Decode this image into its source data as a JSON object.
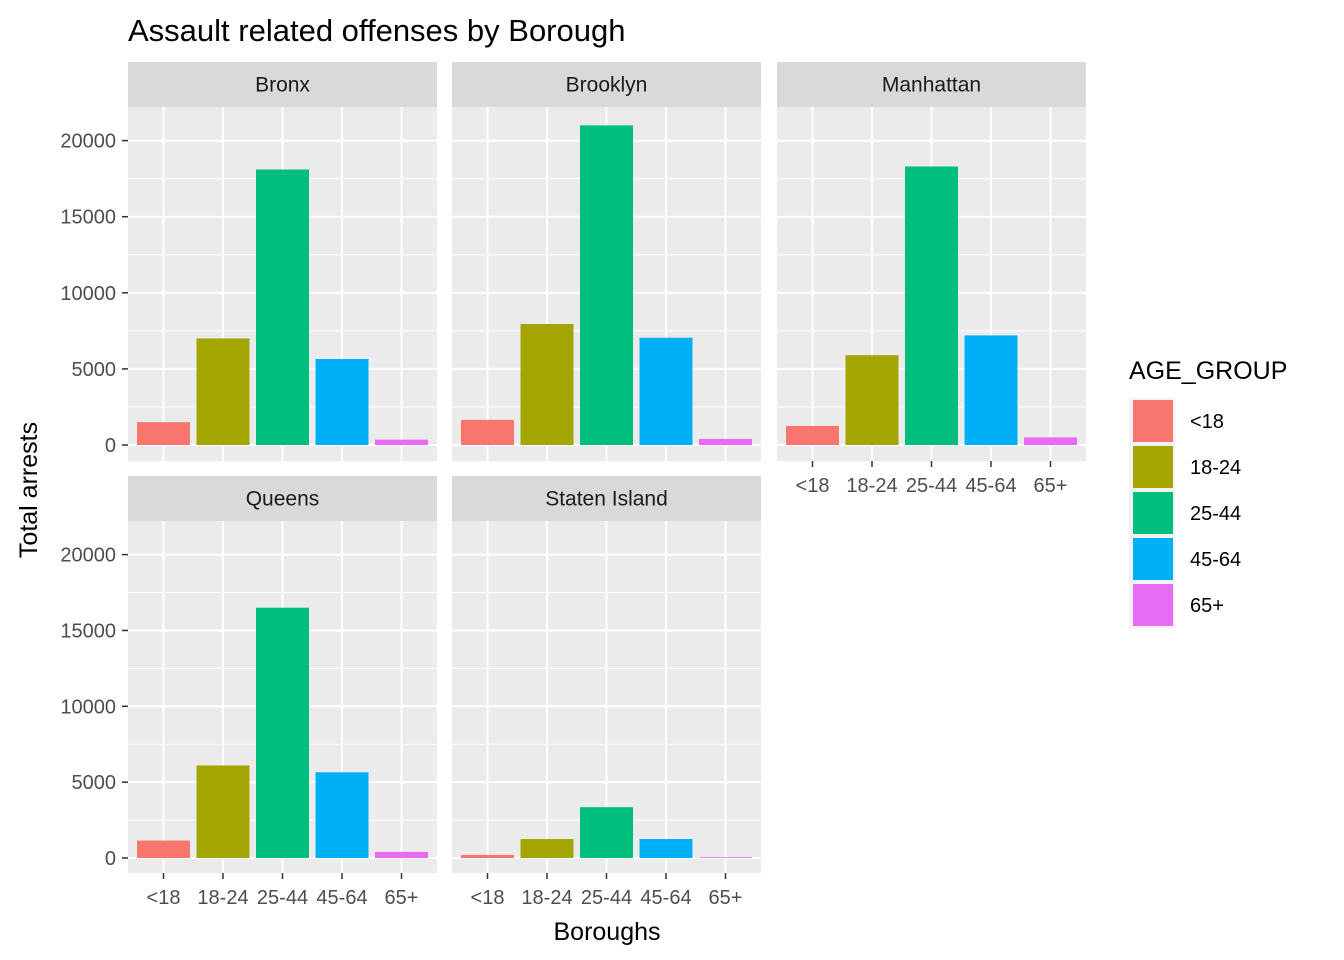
{
  "chart_data": {
    "type": "bar",
    "title": "Assault related offenses by Borough",
    "xlabel": "Boroughs",
    "ylabel": "Total arrests",
    "ylim": [
      0,
      21000
    ],
    "y_ticks": [
      0,
      5000,
      10000,
      15000,
      20000
    ],
    "y_tick_labels": [
      "0",
      "5000",
      "10000",
      "15000",
      "20000"
    ],
    "grid": true,
    "legend_position": "right",
    "legend_title": "AGE_GROUP",
    "categories": [
      "<18",
      "18-24",
      "25-44",
      "45-64",
      "65+"
    ],
    "colors": [
      "#F8766D",
      "#A3A500",
      "#00BF7D",
      "#00B0F6",
      "#E76BF3"
    ],
    "panels": [
      {
        "name": "Bronx",
        "values": [
          1500,
          7000,
          18100,
          5650,
          350
        ]
      },
      {
        "name": "Brooklyn",
        "values": [
          1650,
          7950,
          21000,
          7050,
          400
        ]
      },
      {
        "name": "Manhattan",
        "values": [
          1250,
          5900,
          18300,
          7200,
          500
        ]
      },
      {
        "name": "Queens",
        "values": [
          1150,
          6100,
          16500,
          5650,
          400
        ]
      },
      {
        "name": "Staten Island",
        "values": [
          200,
          1250,
          3350,
          1250,
          50
        ]
      }
    ]
  }
}
